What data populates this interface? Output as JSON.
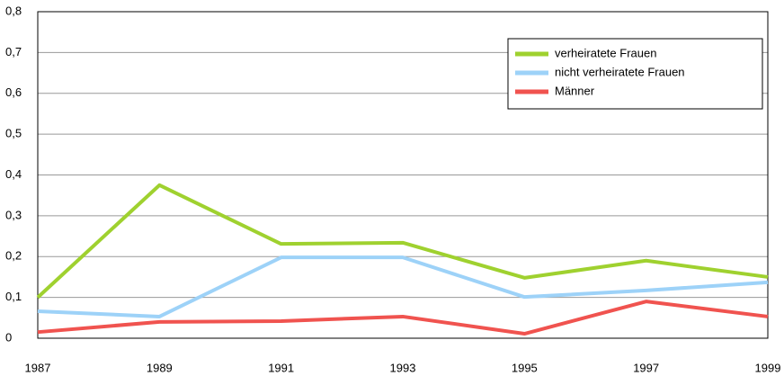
{
  "chart_data": {
    "type": "line",
    "x": [
      1987,
      1989,
      1991,
      1993,
      1995,
      1997,
      1999
    ],
    "xlim": [
      1987,
      1999
    ],
    "xticks": [
      1987,
      1989,
      1991,
      1993,
      1995,
      1997,
      1999
    ],
    "ylim": [
      0,
      0.8
    ],
    "yticks": [
      0,
      {
        "value": 0.1,
        "label": "0,1"
      },
      {
        "value": 0.2,
        "label": "0,2"
      },
      {
        "value": 0.3,
        "label": "0,3"
      },
      {
        "value": 0.4,
        "label": "0,4"
      },
      {
        "value": 0.5,
        "label": "0,5"
      },
      {
        "value": 0.6,
        "label": "0,6"
      },
      {
        "value": 0.7,
        "label": "0,7"
      },
      {
        "value": 0.8,
        "label": "0,8"
      }
    ],
    "grid": true,
    "legend": "upper right",
    "series": [
      {
        "name": "verheiratete Frauen",
        "color": "#9fd12f",
        "values": [
          0.1,
          0.375,
          0.231,
          0.234,
          0.148,
          0.19,
          0.15
        ]
      },
      {
        "name": "nicht verheiratete Frauen",
        "color": "#9dd2f8",
        "values": [
          0.066,
          0.053,
          0.198,
          0.198,
          0.101,
          0.117,
          0.137
        ]
      },
      {
        "name": "Männer",
        "color": "#f0534f",
        "values": [
          0.015,
          0.04,
          0.042,
          0.053,
          0.011,
          0.09,
          0.053
        ]
      }
    ]
  }
}
